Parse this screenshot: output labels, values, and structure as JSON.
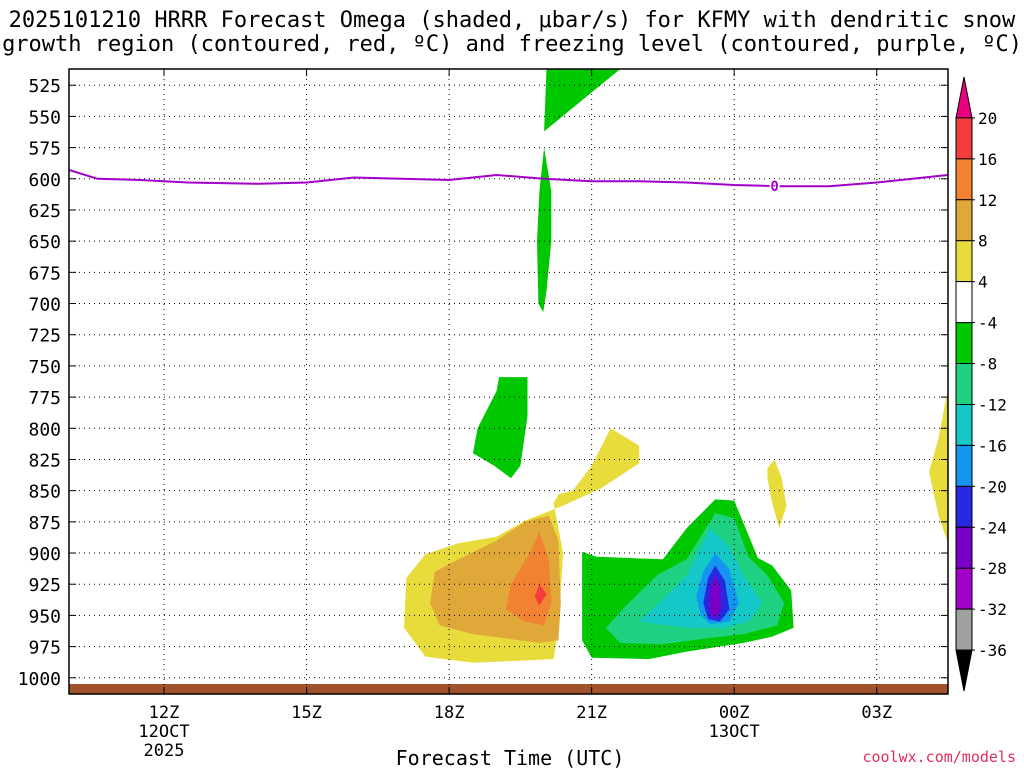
{
  "title_line1": "2025101210 HRRR Forecast Omega (shaded, μbar/s) for KFMY with dendritic snow",
  "title_line2": "growth region (contoured, red, ºC) and freezing level (contoured, purple, ºC)",
  "credit": "coolwx.com/models",
  "chart_data": {
    "type": "heatmap",
    "xlabel": "Forecast Time (UTC)",
    "x_range_hours": [
      10,
      28.5
    ],
    "y_range_hpa": [
      512,
      1013
    ],
    "y_ticks": [
      525,
      550,
      575,
      600,
      625,
      650,
      675,
      700,
      725,
      750,
      775,
      800,
      825,
      850,
      875,
      900,
      925,
      950,
      975,
      1000
    ],
    "x_ticks": [
      {
        "hour": 12,
        "line1": "12Z",
        "line2": "12OCT",
        "line3": "2025"
      },
      {
        "hour": 15,
        "line1": "15Z",
        "line2": "",
        "line3": ""
      },
      {
        "hour": 18,
        "line1": "18Z",
        "line2": "",
        "line3": ""
      },
      {
        "hour": 21,
        "line1": "21Z",
        "line2": "",
        "line3": ""
      },
      {
        "hour": 24,
        "line1": "00Z",
        "line2": "13OCT",
        "line3": ""
      },
      {
        "hour": 27,
        "line1": "03Z",
        "line2": "",
        "line3": ""
      }
    ],
    "grid": true,
    "freezing_level": {
      "label": "0",
      "color": "#a000c8",
      "label_hour": 24.85,
      "points": [
        [
          10,
          593
        ],
        [
          10.6,
          600
        ],
        [
          11.5,
          601
        ],
        [
          12.5,
          603
        ],
        [
          14,
          604
        ],
        [
          15,
          603
        ],
        [
          16,
          599
        ],
        [
          17,
          600
        ],
        [
          18,
          601
        ],
        [
          19,
          597
        ],
        [
          20,
          600
        ],
        [
          21,
          602
        ],
        [
          22,
          602
        ],
        [
          23,
          603
        ],
        [
          24,
          605
        ],
        [
          25,
          606
        ],
        [
          26,
          606
        ],
        [
          27,
          603
        ],
        [
          28,
          599
        ],
        [
          28.5,
          597
        ]
      ]
    },
    "colorbar": {
      "labels": [
        "20",
        "16",
        "12",
        "8",
        "4",
        "-4",
        "-8",
        "-12",
        "-16",
        "-20",
        "-24",
        "-28",
        "-32",
        "-36"
      ],
      "bins": [
        {
          "color": "#e80080"
        },
        {
          "color": "#f53c3c"
        },
        {
          "color": "#f08232"
        },
        {
          "color": "#e0a838"
        },
        {
          "color": "#e8dc3c"
        },
        {
          "color": "#ffffff"
        },
        {
          "color": "#00c800"
        },
        {
          "color": "#1ed282"
        },
        {
          "color": "#14c8c8"
        },
        {
          "color": "#1496f0"
        },
        {
          "color": "#2828e0"
        },
        {
          "color": "#7800c8"
        },
        {
          "color": "#a000c8"
        },
        {
          "color": "#a0a0a0"
        },
        {
          "color": "#000000"
        }
      ]
    },
    "omega_regions": [
      {
        "color": "#00c800",
        "points": [
          [
            20.05,
            512
          ],
          [
            20.65,
            512
          ],
          [
            21.6,
            512
          ],
          [
            20.0,
            562
          ],
          [
            20.0,
            562
          ]
        ]
      },
      {
        "color": "#00c800",
        "points": [
          [
            20.0,
            575
          ],
          [
            20.15,
            610
          ],
          [
            20.15,
            650
          ],
          [
            20.05,
            690
          ],
          [
            19.98,
            707
          ],
          [
            19.88,
            700
          ],
          [
            19.85,
            650
          ],
          [
            19.9,
            610
          ]
        ]
      },
      {
        "color": "#00c800",
        "points": [
          [
            19.05,
            759
          ],
          [
            19.65,
            759
          ],
          [
            19.65,
            790
          ],
          [
            19.5,
            830
          ],
          [
            19.3,
            840
          ],
          [
            18.95,
            830
          ],
          [
            18.5,
            820
          ],
          [
            18.6,
            800
          ],
          [
            19.0,
            770
          ]
        ]
      },
      {
        "color": "#e8dc3c",
        "points": [
          [
            21.4,
            800
          ],
          [
            22.0,
            814
          ],
          [
            22.0,
            828
          ],
          [
            21.2,
            848
          ],
          [
            20.4,
            862
          ],
          [
            19.6,
            874
          ],
          [
            19.0,
            887
          ],
          [
            18.2,
            892
          ],
          [
            17.5,
            901
          ],
          [
            17.1,
            920
          ],
          [
            17.05,
            960
          ],
          [
            17.5,
            983
          ],
          [
            18.5,
            988
          ],
          [
            20.2,
            985
          ],
          [
            20.3,
            960
          ],
          [
            20.4,
            900
          ],
          [
            20.2,
            860
          ],
          [
            20.3,
            853
          ],
          [
            20.6,
            850
          ],
          [
            21.0,
            830
          ]
        ]
      },
      {
        "color": "#e0a838",
        "points": [
          [
            19.0,
            890
          ],
          [
            19.6,
            875
          ],
          [
            20.1,
            870
          ],
          [
            20.3,
            890
          ],
          [
            20.35,
            940
          ],
          [
            20.3,
            970
          ],
          [
            19.9,
            972
          ],
          [
            19.5,
            970
          ],
          [
            18.5,
            965
          ],
          [
            17.8,
            958
          ],
          [
            17.6,
            940
          ],
          [
            17.7,
            915
          ],
          [
            18.2,
            905
          ]
        ]
      },
      {
        "color": "#f08232",
        "points": [
          [
            19.9,
            883
          ],
          [
            20.1,
            905
          ],
          [
            20.15,
            940
          ],
          [
            20.0,
            958
          ],
          [
            19.6,
            955
          ],
          [
            19.2,
            945
          ],
          [
            19.3,
            925
          ],
          [
            19.7,
            900
          ]
        ]
      },
      {
        "color": "#f53c3c",
        "points": [
          [
            19.9,
            925
          ],
          [
            20.05,
            933
          ],
          [
            19.9,
            942
          ],
          [
            19.8,
            935
          ]
        ]
      },
      {
        "color": "#00c800",
        "points": [
          [
            20.8,
            899
          ],
          [
            21.1,
            903
          ],
          [
            22.5,
            905
          ],
          [
            23.0,
            880
          ],
          [
            23.6,
            857
          ],
          [
            24.0,
            858
          ],
          [
            24.5,
            904
          ],
          [
            24.8,
            910
          ],
          [
            25.2,
            930
          ],
          [
            25.25,
            960
          ],
          [
            24.8,
            967
          ],
          [
            24.2,
            972
          ],
          [
            23.0,
            979
          ],
          [
            22.2,
            985
          ],
          [
            21.0,
            984
          ],
          [
            20.8,
            970
          ],
          [
            20.8,
            930
          ]
        ]
      },
      {
        "color": "#1ed282",
        "points": [
          [
            23.6,
            868
          ],
          [
            24.0,
            872
          ],
          [
            24.3,
            903
          ],
          [
            24.7,
            918
          ],
          [
            25.05,
            940
          ],
          [
            24.9,
            958
          ],
          [
            24.2,
            965
          ],
          [
            23.5,
            968
          ],
          [
            22.5,
            973
          ],
          [
            21.6,
            972
          ],
          [
            21.3,
            960
          ],
          [
            21.7,
            943
          ],
          [
            22.4,
            917
          ],
          [
            23.0,
            905
          ]
        ]
      },
      {
        "color": "#14c8c8",
        "points": [
          [
            23.5,
            880
          ],
          [
            23.9,
            895
          ],
          [
            24.2,
            918
          ],
          [
            24.6,
            940
          ],
          [
            24.3,
            955
          ],
          [
            23.8,
            960
          ],
          [
            23.0,
            960
          ],
          [
            22.0,
            955
          ],
          [
            22.5,
            937
          ],
          [
            23.0,
            918
          ]
        ]
      },
      {
        "color": "#1496f0",
        "points": [
          [
            23.6,
            900
          ],
          [
            23.9,
            913
          ],
          [
            24.1,
            940
          ],
          [
            23.9,
            955
          ],
          [
            23.5,
            957
          ],
          [
            23.3,
            950
          ],
          [
            23.2,
            935
          ],
          [
            23.35,
            915
          ]
        ]
      },
      {
        "color": "#2828e0",
        "points": [
          [
            23.6,
            910
          ],
          [
            23.8,
            922
          ],
          [
            23.9,
            945
          ],
          [
            23.7,
            955
          ],
          [
            23.45,
            953
          ],
          [
            23.35,
            940
          ],
          [
            23.45,
            920
          ]
        ]
      },
      {
        "color": "#7800c8",
        "points": [
          [
            23.6,
            918
          ],
          [
            23.72,
            930
          ],
          [
            23.72,
            946
          ],
          [
            23.6,
            953
          ],
          [
            23.48,
            948
          ],
          [
            23.48,
            930
          ]
        ]
      },
      {
        "color": "#e8dc3c",
        "points": [
          [
            24.85,
            825
          ],
          [
            25.0,
            840
          ],
          [
            25.1,
            862
          ],
          [
            24.95,
            880
          ],
          [
            24.8,
            860
          ],
          [
            24.7,
            840
          ],
          [
            24.7,
            832
          ]
        ]
      },
      {
        "color": "#e8dc3c",
        "points": [
          [
            28.5,
            768
          ],
          [
            28.5,
            892
          ],
          [
            28.3,
            870
          ],
          [
            28.1,
            835
          ],
          [
            28.3,
            808
          ]
        ]
      }
    ],
    "ground": {
      "color": "#a0522d",
      "top_hpa": 1005
    }
  }
}
